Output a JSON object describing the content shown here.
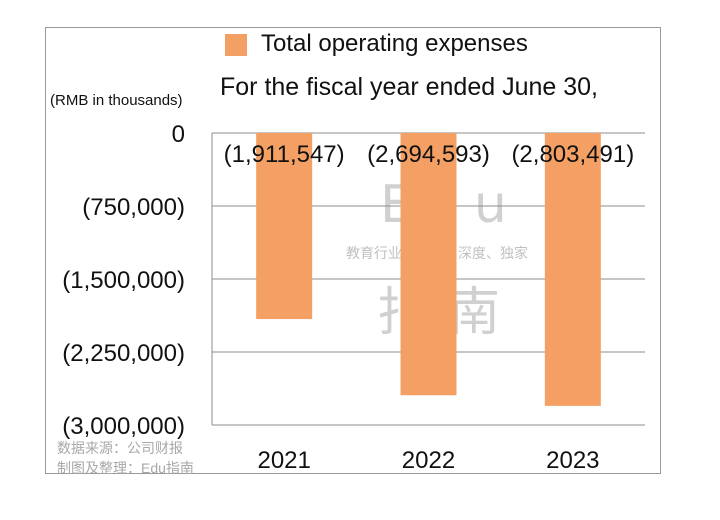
{
  "chart_data": {
    "type": "bar",
    "title": "For the fiscal year ended June 30,",
    "unit_note": "(RMB in thousands)",
    "categories": [
      "2021",
      "2022",
      "2023"
    ],
    "series": [
      {
        "name": "Total operating expenses",
        "values": [
          -1911547,
          -2694593,
          -2803491
        ],
        "labels": [
          "(1,911,547)",
          "(2,694,593)",
          "(2,803,491)"
        ],
        "color": "#F4A064"
      }
    ],
    "yticks": [
      0,
      -750000,
      -1500000,
      -2250000,
      -3000000
    ],
    "ytick_labels": [
      "0",
      "(750,000)",
      "(1,500,000)",
      "(2,250,000)",
      "(3,000,000)"
    ],
    "ylim": [
      -3000000,
      0
    ],
    "grid": true,
    "legend_position": "top"
  },
  "watermark": {
    "latin": "Edu",
    "tagline": "教育行业，前沿、深度、独家",
    "cjk": "指南"
  },
  "source": {
    "line1": "数据来源：公司财报",
    "line2": "制图及整理：Edu指南"
  }
}
